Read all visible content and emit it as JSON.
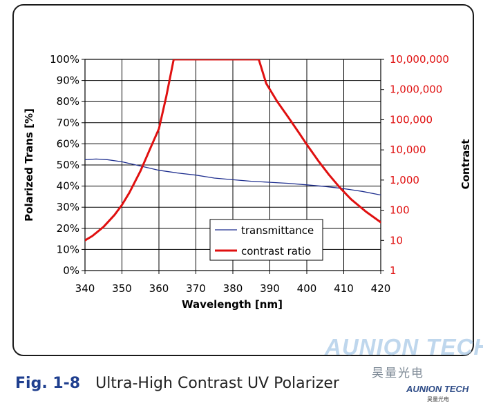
{
  "chart_data": {
    "type": "line",
    "xlabel": "Wavelength [nm]",
    "ylabel_left": "Polarized Trans [%]",
    "ylabel_right": "Contrast",
    "x_ticks": [
      340,
      350,
      360,
      370,
      380,
      390,
      400,
      410,
      420
    ],
    "xlim": [
      340,
      420
    ],
    "y_left_ticks": [
      "0%",
      "10%",
      "20%",
      "30%",
      "40%",
      "50%",
      "60%",
      "70%",
      "80%",
      "90%",
      "100%"
    ],
    "y_left_lim": [
      0,
      100
    ],
    "y_right_ticks": [
      "1",
      "10",
      "100",
      "1,000",
      "10,000",
      "100,000",
      "1,000,000",
      "10,000,000"
    ],
    "y_right_lim": [
      1,
      10000000
    ],
    "y_right_scale": "log",
    "grid": true,
    "legend_position": "bottom-right inside plot",
    "series": [
      {
        "name": "transmittance",
        "axis": "left",
        "color": "#1f2f8f",
        "x": [
          340,
          343,
          346,
          350,
          355,
          360,
          365,
          370,
          375,
          380,
          385,
          390,
          395,
          400,
          405,
          410,
          415,
          420
        ],
        "y": [
          52.5,
          52.8,
          52.5,
          51.5,
          49.5,
          47.5,
          46.2,
          45.2,
          43.8,
          43.0,
          42.3,
          41.8,
          41.3,
          40.6,
          39.8,
          38.8,
          37.5,
          35.8
        ]
      },
      {
        "name": "contrast ratio",
        "axis": "right",
        "color": "#e01010",
        "x": [
          340,
          342,
          345,
          348,
          350,
          352,
          355,
          358,
          360,
          362,
          364,
          387,
          389,
          392,
          395,
          398,
          400,
          403,
          406,
          409,
          412,
          416,
          420
        ],
        "y": [
          10,
          14,
          28,
          70,
          150,
          380,
          2000,
          14000,
          50000,
          600000,
          10000000,
          10000000,
          1600000,
          400000,
          120000,
          35000,
          15000,
          4500,
          1500,
          550,
          230,
          90,
          40
        ]
      }
    ]
  },
  "caption": {
    "number": "Fig. 1-8",
    "text": "Ultra-High Contrast UV Polarizer"
  },
  "watermark": {
    "brand": "AUNION TECH",
    "brand_cn": "昊量光电",
    "brand_small": "AUNION TECH",
    "brand_small_cn": "昊量光电"
  },
  "colors": {
    "right_axis": "#e01010",
    "grid": "#000000",
    "caption_number": "#1f3f8f"
  }
}
